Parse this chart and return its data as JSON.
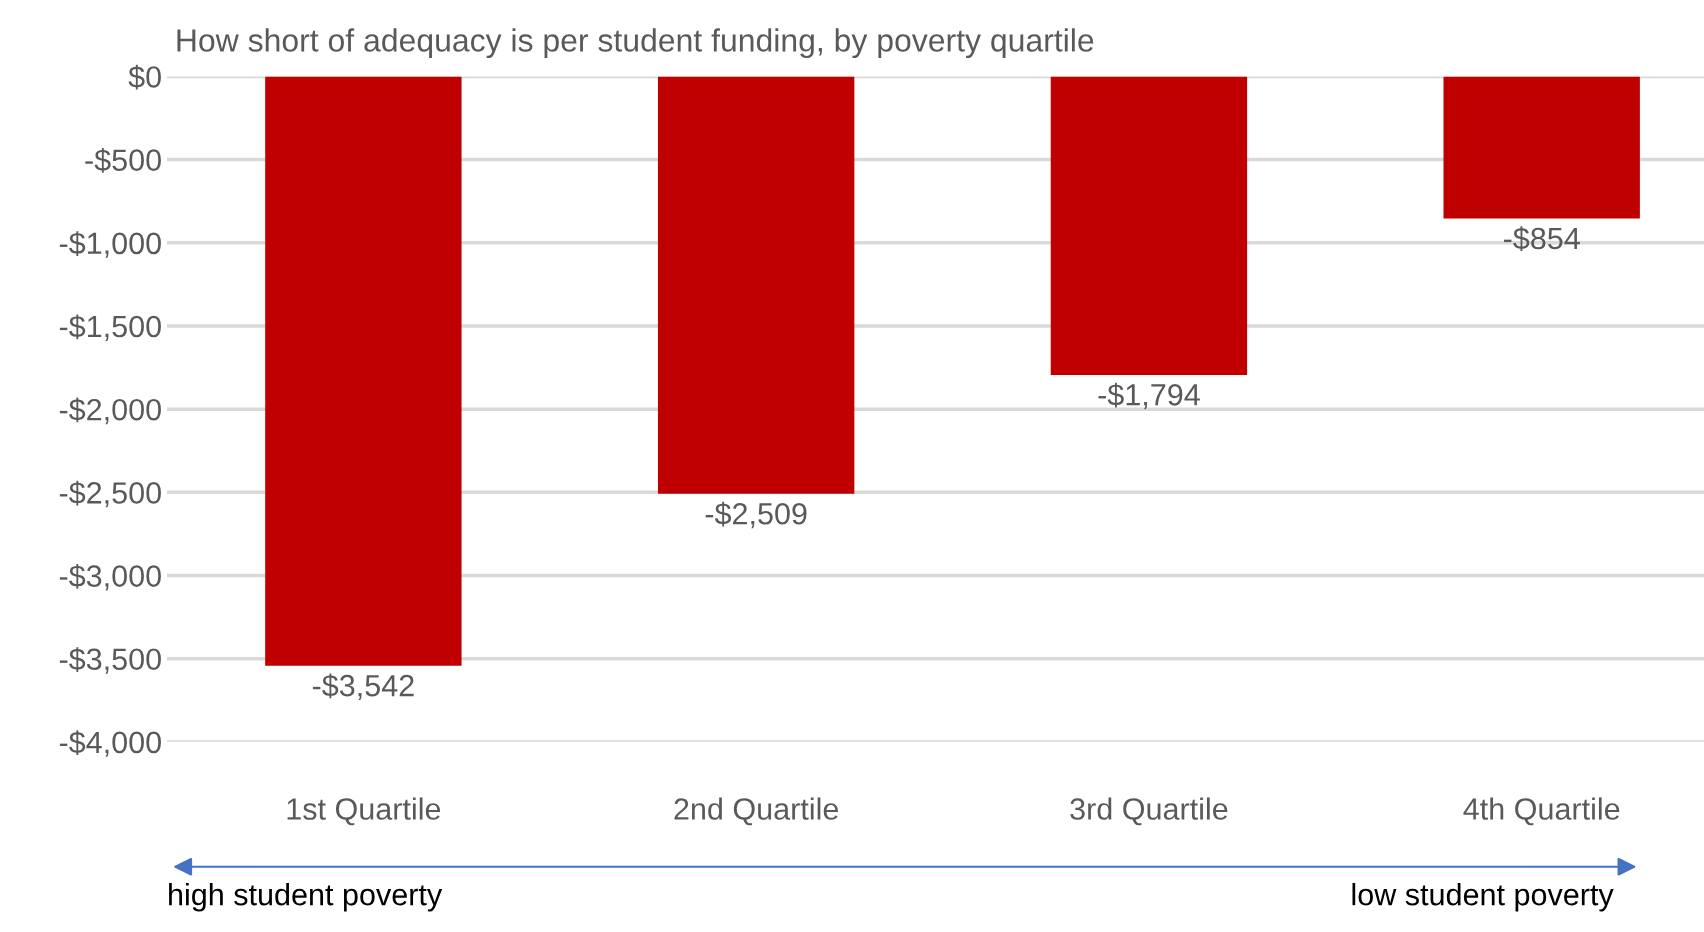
{
  "chart_data": {
    "type": "bar",
    "title": "How short of adequacy is per student funding, by poverty quartile",
    "categories": [
      "1st Quartile",
      "2nd Quartile",
      "3rd Quartile",
      "4th Quartile"
    ],
    "values": [
      -3542,
      -2509,
      -1794,
      -854
    ],
    "value_labels": [
      "-$3,542",
      "-$2,509",
      "-$1,794",
      "-$854"
    ],
    "color": "#c00000",
    "ylim": [
      -4000,
      0
    ],
    "yticks": [
      {
        "value": -4000,
        "label": "-$4,000"
      },
      {
        "value": -3500,
        "label": "-$3,500"
      },
      {
        "value": -3000,
        "label": "-$3,000"
      },
      {
        "value": -2500,
        "label": "-$2,500"
      },
      {
        "value": -2000,
        "label": "-$2,000"
      },
      {
        "value": -1500,
        "label": "-$1,500"
      },
      {
        "value": -1000,
        "label": "-$1,000"
      },
      {
        "value": -500,
        "label": "-$500"
      },
      {
        "value": 0,
        "label": "$0"
      }
    ],
    "grid": "y",
    "annotations": [
      "high student poverty",
      "low student poverty"
    ]
  }
}
